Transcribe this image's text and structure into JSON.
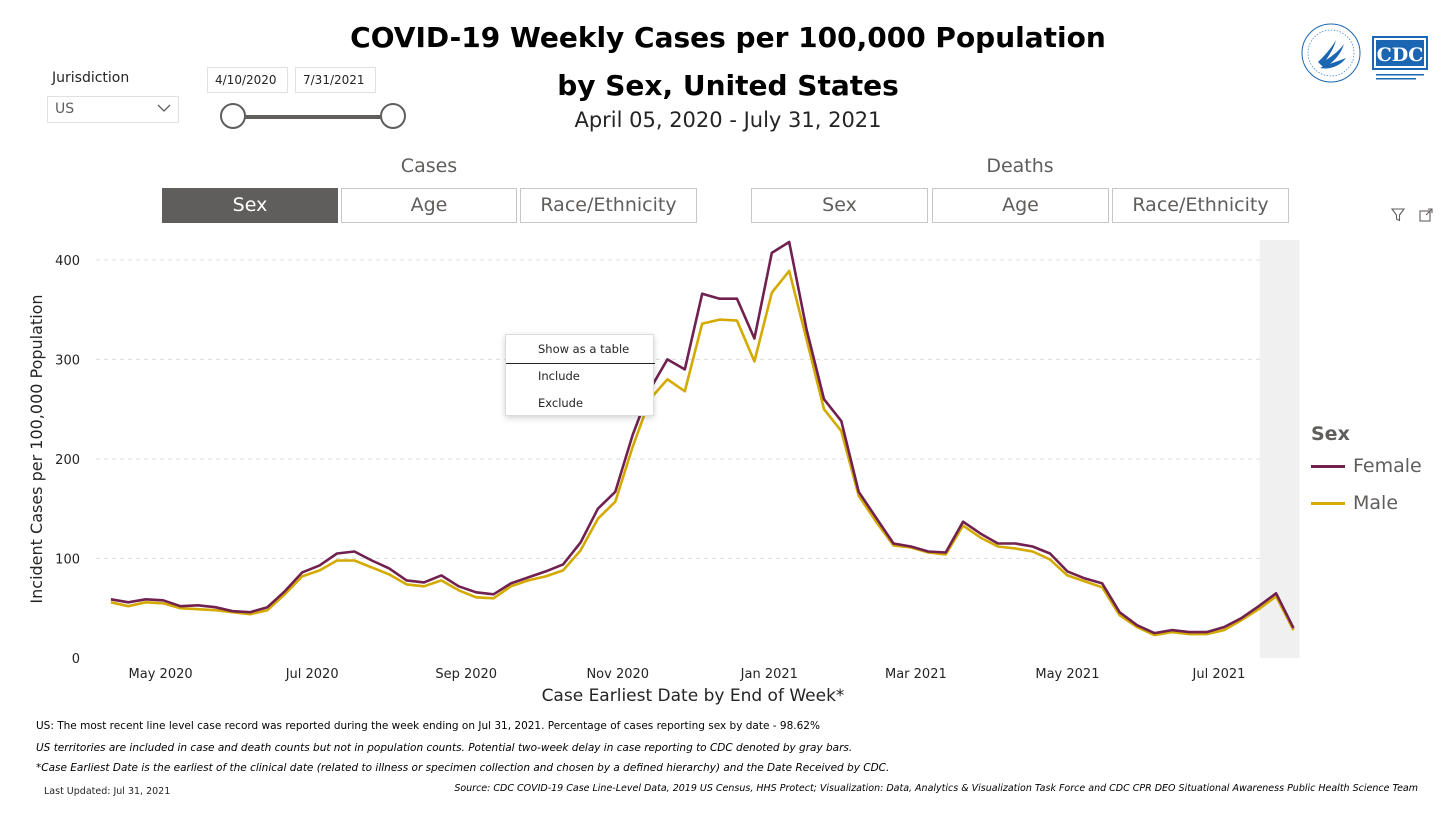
{
  "header": {
    "title_line1": "COVID-19 Weekly Cases per 100,000 Population",
    "title_line2": "by Sex, United States",
    "date_range": "April 05, 2020 - July 31, 2021"
  },
  "filters": {
    "jurisdiction_label": "Jurisdiction",
    "jurisdiction_value": "US",
    "start_date": "4/10/2020",
    "end_date": "7/31/2021"
  },
  "tabs": {
    "cases_label": "Cases",
    "deaths_label": "Deaths",
    "cases": [
      {
        "label": "Sex",
        "active": true
      },
      {
        "label": "Age",
        "active": false
      },
      {
        "label": "Race/Ethnicity",
        "active": false
      }
    ],
    "deaths": [
      {
        "label": "Sex",
        "active": false
      },
      {
        "label": "Age",
        "active": false
      },
      {
        "label": "Race/Ethnicity",
        "active": false
      }
    ]
  },
  "context_menu": {
    "items": [
      "Show as a table",
      "Include",
      "Exclude"
    ]
  },
  "legend": {
    "title": "Sex",
    "items": [
      {
        "name": "Female",
        "color": "#70214f"
      },
      {
        "name": "Male",
        "color": "#d4aa00"
      }
    ]
  },
  "logos": {
    "cdc_text": "CDC"
  },
  "notes": {
    "line1": "US: The most recent line level case record was reported during the week ending on Jul 31, 2021. Percentage of cases reporting sex by date - 98.62%",
    "line2": "US territories are included in case and death counts but not in population counts. Potential two-week delay in case reporting to CDC denoted by gray bars.",
    "line3": "*Case Earliest Date is the earliest of the clinical date (related to illness or specimen collection and chosen by a defined hierarchy) and the Date Received by CDC.",
    "last_updated": "Last Updated: Jul 31, 2021",
    "source": "Source: CDC COVID-19 Case Line-Level Data, 2019 US Census, HHS Protect; Visualization: Data, Analytics & Visualization Task Force and CDC CPR DEO Situational Awareness Public Health Science Team"
  },
  "chart_data": {
    "type": "line",
    "xlabel": "Case Earliest Date by End of Week*",
    "ylabel": "Incident Cases per 100,000 Population",
    "ylim": [
      0,
      420
    ],
    "yticks": [
      0,
      100,
      200,
      300,
      400
    ],
    "xtick_labels": [
      {
        "label": "May 2020",
        "date": "2020-05-01"
      },
      {
        "label": "Jul 2020",
        "date": "2020-07-01"
      },
      {
        "label": "Sep 2020",
        "date": "2020-09-01"
      },
      {
        "label": "Nov 2020",
        "date": "2020-11-01"
      },
      {
        "label": "Jan 2021",
        "date": "2021-01-01"
      },
      {
        "label": "Mar 2021",
        "date": "2021-03-01"
      },
      {
        "label": "May 2021",
        "date": "2021-05-01"
      },
      {
        "label": "Jul 2021",
        "date": "2021-07-01"
      }
    ],
    "xlim": [
      "2020-04-05",
      "2021-08-01"
    ],
    "gray_bar": [
      "2021-07-19",
      "2021-07-31"
    ],
    "grid": "horizontal dashed",
    "legend_position": "right",
    "x": [
      "2020-04-11",
      "2020-04-18",
      "2020-04-25",
      "2020-05-02",
      "2020-05-09",
      "2020-05-16",
      "2020-05-23",
      "2020-05-30",
      "2020-06-06",
      "2020-06-13",
      "2020-06-20",
      "2020-06-27",
      "2020-07-04",
      "2020-07-11",
      "2020-07-18",
      "2020-07-25",
      "2020-08-01",
      "2020-08-08",
      "2020-08-15",
      "2020-08-22",
      "2020-08-29",
      "2020-09-05",
      "2020-09-12",
      "2020-09-19",
      "2020-09-26",
      "2020-10-03",
      "2020-10-10",
      "2020-10-17",
      "2020-10-24",
      "2020-10-31",
      "2020-11-07",
      "2020-11-14",
      "2020-11-21",
      "2020-11-28",
      "2020-12-05",
      "2020-12-12",
      "2020-12-19",
      "2020-12-26",
      "2021-01-02",
      "2021-01-09",
      "2021-01-16",
      "2021-01-23",
      "2021-01-30",
      "2021-02-06",
      "2021-02-13",
      "2021-02-20",
      "2021-02-27",
      "2021-03-06",
      "2021-03-13",
      "2021-03-20",
      "2021-03-27",
      "2021-04-03",
      "2021-04-10",
      "2021-04-17",
      "2021-04-24",
      "2021-05-01",
      "2021-05-08",
      "2021-05-15",
      "2021-05-22",
      "2021-05-29",
      "2021-06-05",
      "2021-06-12",
      "2021-06-19",
      "2021-06-26",
      "2021-07-03",
      "2021-07-10",
      "2021-07-17",
      "2021-07-24",
      "2021-07-31"
    ],
    "series": [
      {
        "name": "Female",
        "color": "#70214f",
        "values": [
          59,
          56,
          59,
          58,
          52,
          53,
          51,
          47,
          46,
          51,
          67,
          86,
          93,
          105,
          107,
          98,
          90,
          78,
          76,
          83,
          72,
          66,
          64,
          75,
          81,
          87,
          94,
          116,
          150,
          167,
          224,
          270,
          300,
          290,
          366,
          361,
          361,
          321,
          407,
          418,
          330,
          260,
          238,
          167,
          141,
          115,
          112,
          107,
          106,
          137,
          125,
          115,
          115,
          112,
          105,
          87,
          80,
          75,
          46,
          33,
          25,
          28,
          26,
          26,
          31,
          40,
          52,
          65,
          30
        ]
      },
      {
        "name": "Male",
        "color": "#d4aa00",
        "values": [
          56,
          52,
          56,
          55,
          50,
          49,
          48,
          46,
          44,
          48,
          64,
          82,
          88,
          98,
          98,
          91,
          84,
          74,
          72,
          78,
          68,
          61,
          60,
          72,
          78,
          82,
          88,
          108,
          140,
          157,
          212,
          260,
          280,
          268,
          336,
          340,
          339,
          298,
          367,
          389,
          320,
          250,
          228,
          163,
          137,
          113,
          111,
          106,
          104,
          133,
          121,
          112,
          110,
          107,
          99,
          83,
          77,
          71,
          43,
          31,
          23,
          26,
          24,
          24,
          28,
          38,
          49,
          62,
          28
        ]
      }
    ]
  }
}
